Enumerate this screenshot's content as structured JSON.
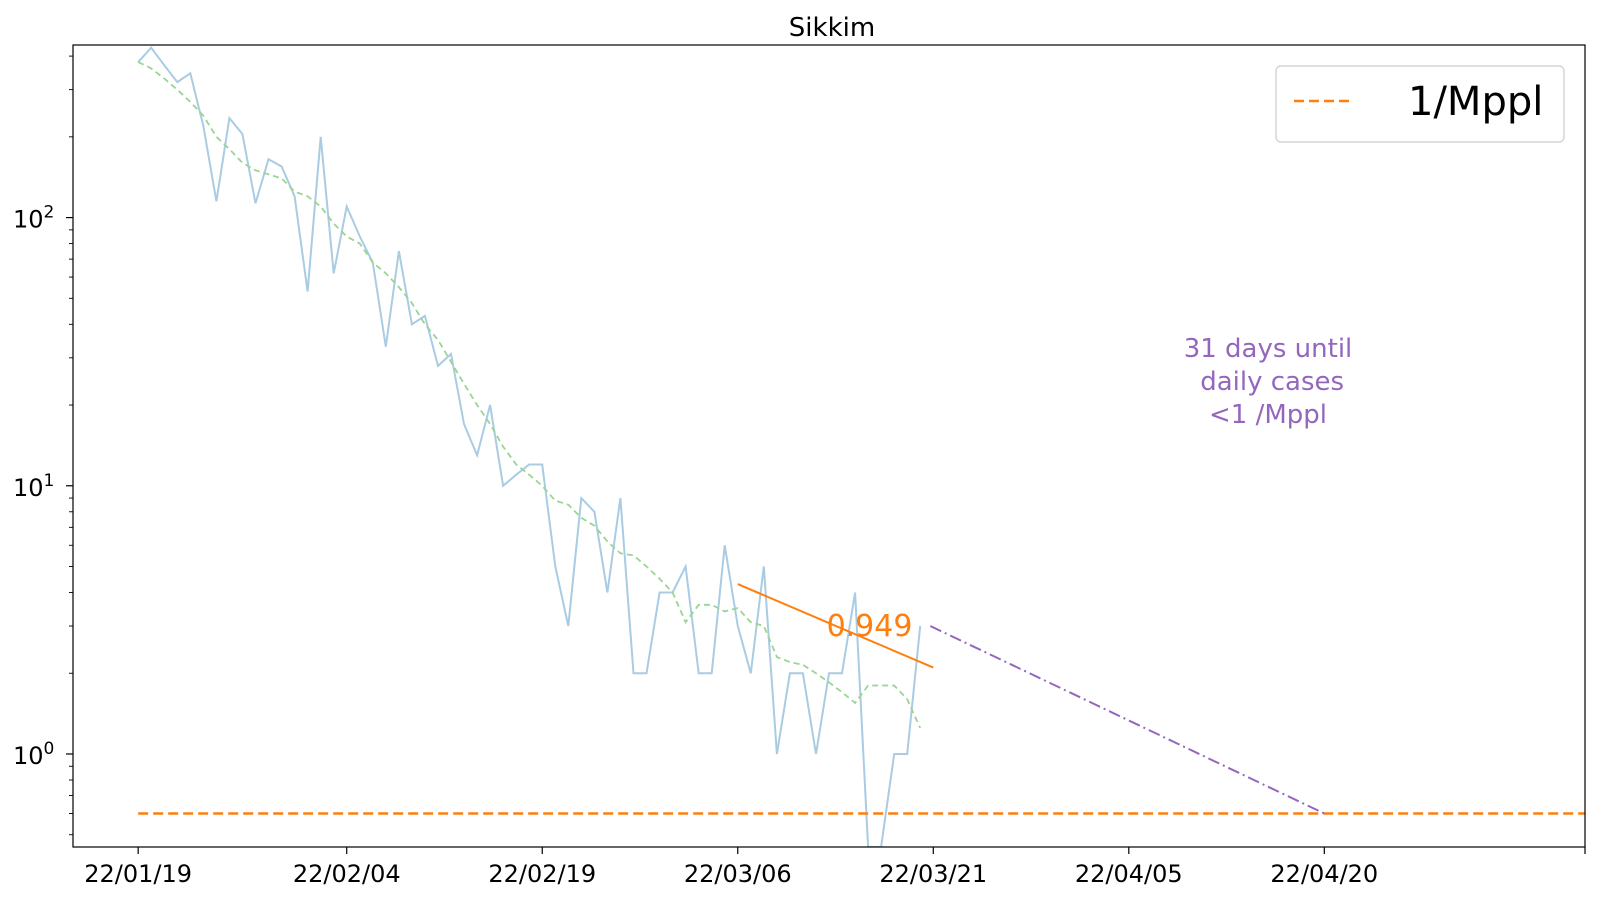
{
  "chart_data": {
    "type": "line",
    "title": "Sikkim",
    "xlabel": "",
    "ylabel": "",
    "yscale": "log",
    "ylim": [
      0.45,
      440
    ],
    "xlim": [
      "2022-01-14",
      "2022-05-10"
    ],
    "x_ticks": [
      {
        "date": "2022-01-19",
        "label": "22/01/19"
      },
      {
        "date": "2022-02-04",
        "label": "22/02/04"
      },
      {
        "date": "2022-02-19",
        "label": "22/02/19"
      },
      {
        "date": "2022-03-06",
        "label": "22/03/06"
      },
      {
        "date": "2022-03-21",
        "label": "22/03/21"
      },
      {
        "date": "2022-04-05",
        "label": "22/04/05"
      },
      {
        "date": "2022-04-20",
        "label": "22/04/20"
      }
    ],
    "y_ticks": [
      {
        "value": 1,
        "base": "10",
        "exp": "0"
      },
      {
        "value": 10,
        "base": "10",
        "exp": "1"
      },
      {
        "value": 100,
        "base": "10",
        "exp": "2"
      }
    ],
    "grid": false,
    "legend_position": "top-right",
    "series": [
      {
        "kind": "daily",
        "color": "#a9cce3",
        "start_date": "2022-01-19",
        "values": [
          380,
          430,
          370,
          320,
          345,
          220,
          115,
          235,
          205,
          113,
          165,
          155,
          120,
          53,
          200,
          62,
          110,
          85,
          68,
          33,
          75,
          40,
          43,
          28,
          31,
          17,
          13,
          20,
          10,
          11,
          12,
          12,
          5,
          3,
          9,
          8,
          4,
          9,
          2,
          2,
          4,
          4,
          5,
          2,
          2,
          6,
          3,
          2,
          5,
          1,
          2,
          2,
          1,
          2,
          2,
          4,
          0.001,
          0.001,
          1,
          1,
          3
        ]
      },
      {
        "kind": "average",
        "color": "#99d594",
        "start_date": "2022-01-19",
        "values": [
          380,
          360,
          330,
          300,
          270,
          240,
          200,
          180,
          160,
          150,
          145,
          140,
          125,
          120,
          110,
          95,
          85,
          80,
          68,
          62,
          55,
          48,
          40,
          35,
          29,
          24,
          20,
          17,
          14,
          12,
          11,
          10,
          8.8,
          8.5,
          7.6,
          7.1,
          6.2,
          5.6,
          5.5,
          5.0,
          4.5,
          4.0,
          3.1,
          3.6,
          3.6,
          3.4,
          3.5,
          3.1,
          3.0,
          2.3,
          2.2,
          2.15,
          2.0,
          1.85,
          1.7,
          1.55,
          1.8,
          1.8,
          1.8,
          1.6,
          1.25
        ]
      },
      {
        "name": "1/Mppl",
        "kind": "threshold",
        "color": "#ff7f0e",
        "start_date": "2022-01-19",
        "end_date": "2022-05-10",
        "value": 0.6
      }
    ],
    "fit_line": {
      "color": "#ff7f0e",
      "start": {
        "date": "2022-03-06",
        "value": 4.3
      },
      "end": {
        "date": "2022-03-21",
        "value": 2.1
      },
      "label": "0.949"
    },
    "projection_line": {
      "color": "#9467bd",
      "start": {
        "date": "2022-03-21",
        "value": 3.0
      },
      "end": {
        "date": "2022-04-20",
        "value": 0.6
      }
    },
    "annotation": {
      "color": "#9467bd",
      "lines": [
        "31 days until",
        " daily cases",
        "<1 /Mppl"
      ]
    }
  }
}
